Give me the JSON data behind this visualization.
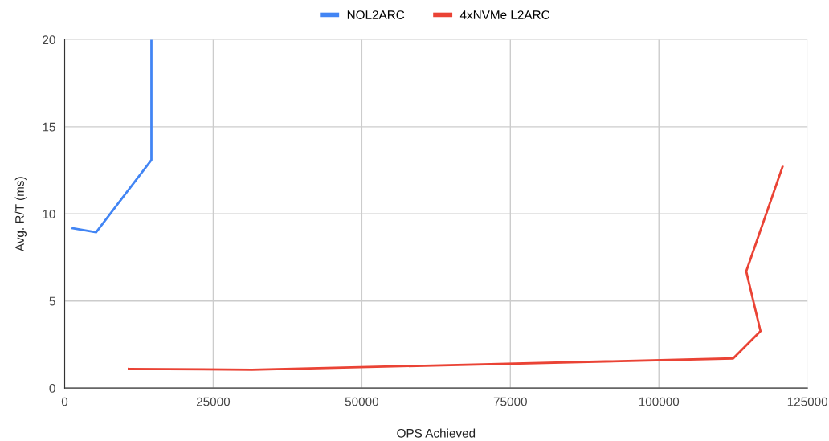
{
  "chart_data": {
    "type": "line",
    "xlabel": "OPS Achieved",
    "ylabel": "Avg. R/T (ms)",
    "series": [
      {
        "name": "NOL2ARC",
        "color": "#4285f4",
        "x": [
          1350,
          5300,
          14600,
          14600
        ],
        "values": [
          9.18,
          8.95,
          13.1,
          20
        ]
      },
      {
        "name": "4xNVMe L2ARC",
        "color": "#ea4335",
        "x": [
          10800,
          31500,
          112500,
          117100,
          114700,
          120800
        ],
        "values": [
          1.1,
          1.05,
          1.7,
          3.27,
          6.7,
          12.7
        ]
      }
    ],
    "xlim": [
      0,
      125000
    ],
    "xticks": [
      0,
      25000,
      50000,
      75000,
      100000,
      125000
    ],
    "ylim": [
      0,
      20
    ],
    "yticks": [
      0,
      5,
      10,
      15,
      20
    ],
    "grid": true,
    "legend": "top",
    "marker": "none",
    "line_style": "solid"
  }
}
